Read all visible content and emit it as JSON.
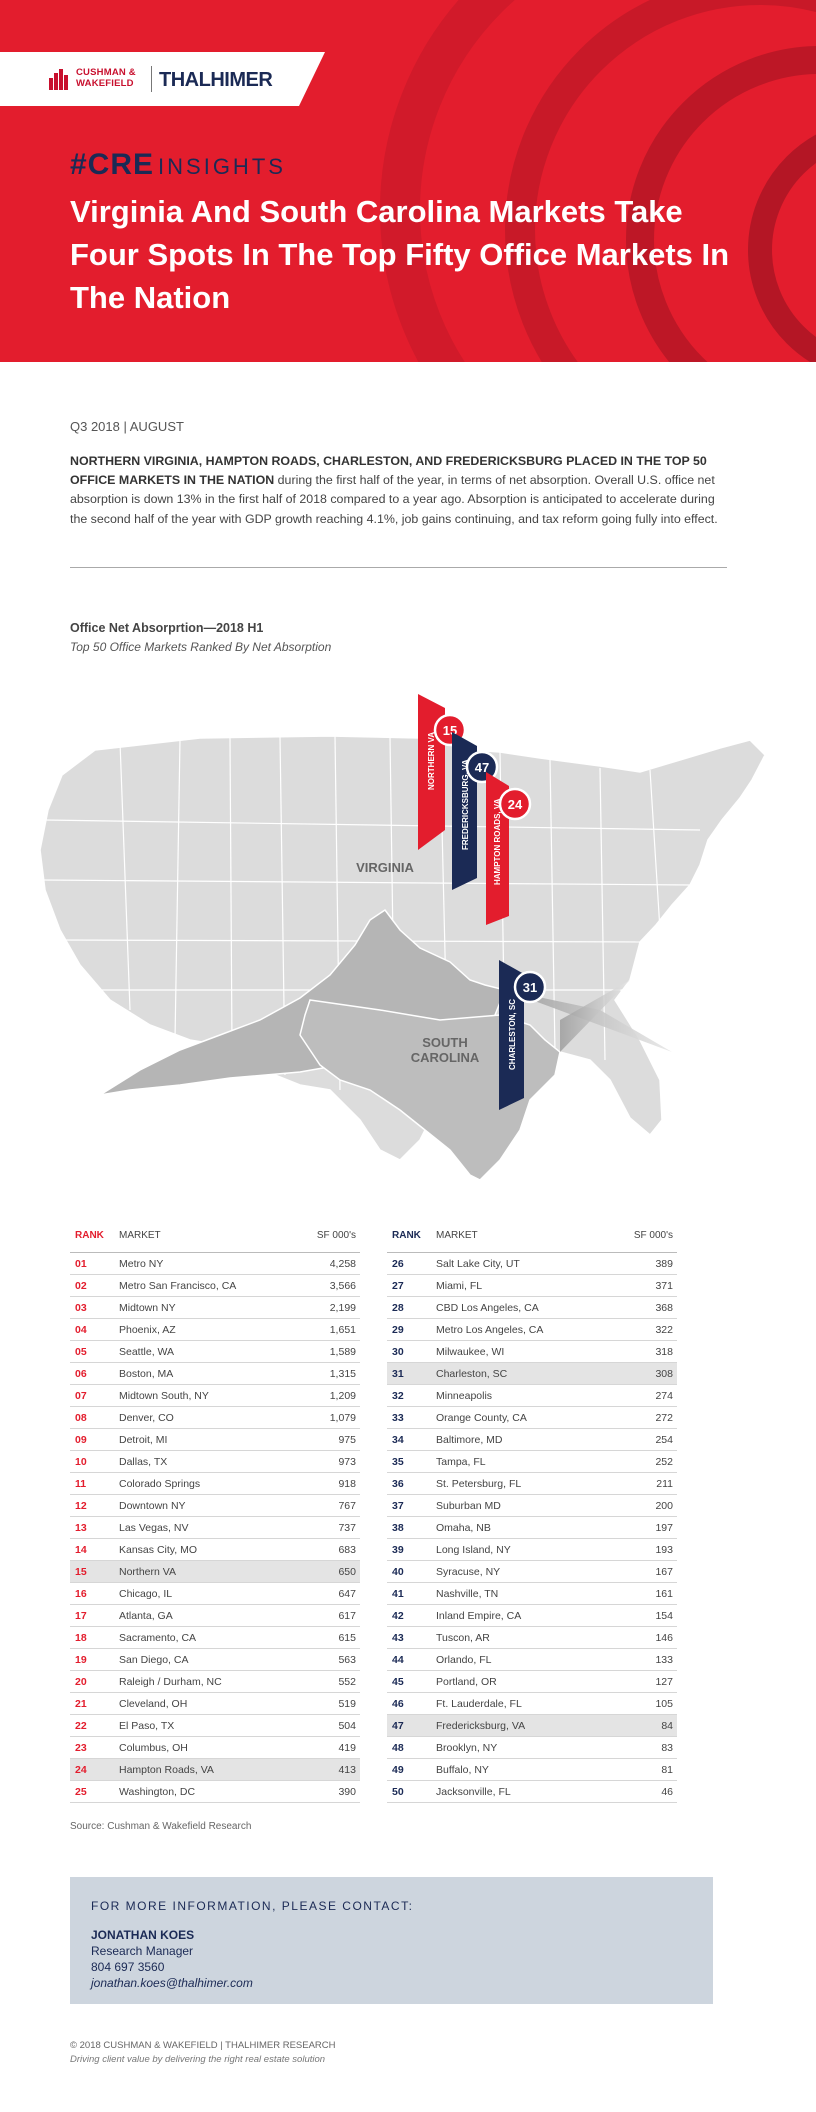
{
  "header": {
    "logo_left": [
      "CUSHMAN &",
      "WAKEFIELD"
    ],
    "logo_right": "THALHIMER",
    "cre_mark": "#CRE",
    "cre_insights": "INSIGHTS",
    "title": "Virginia And South Carolina Markets Take Four Spots In The Top Fifty Office Markets In The Nation",
    "colors": {
      "red": "#e31d2d",
      "navy": "#1b2a55"
    }
  },
  "intro": {
    "date": "Q3 2018 | AUGUST",
    "lead_bold": "NORTHERN VIRGINIA, HAMPTON ROADS, CHARLESTON, AND FREDERICKSBURG PLACED IN THE TOP 50 OFFICE MARKETS IN THE NATION",
    "body": " during the first half of the year, in terms of net absorption. Overall U.S. office net absorption is down 13% in the first half of 2018 compared to a year ago. Absorption is anticipated to accelerate during the second half of the year with GDP growth reaching 4.1%, job gains continuing, and tax reform going fully into effect."
  },
  "chart": {
    "title": "Office Net Absorprtion—2018 H1",
    "subtitle": "Top 50 Office Markets Ranked By Net Absorption"
  },
  "map": {
    "virginia_label": "VIRGINIA",
    "sc_label": [
      "SOUTH",
      "CAROLINA"
    ],
    "markers": [
      {
        "label": "NORTHERN VA",
        "rank": "15",
        "color": "#e31d2d"
      },
      {
        "label": "FREDERICKSBURG, VA",
        "rank": "47",
        "color": "#1b2a55"
      },
      {
        "label": "HAMPTON ROADS, VA",
        "rank": "24",
        "color": "#e31d2d"
      },
      {
        "label": "CHARLESTON, SC",
        "rank": "31",
        "color": "#1b2a55"
      }
    ]
  },
  "table": {
    "headers": {
      "rank": "RANK",
      "market": "MARKET",
      "sf": "SF 000's"
    },
    "left": [
      {
        "rank": "01",
        "market": "Metro NY",
        "sf": "4,258"
      },
      {
        "rank": "02",
        "market": "Metro San Francisco, CA",
        "sf": "3,566"
      },
      {
        "rank": "03",
        "market": "Midtown NY",
        "sf": "2,199"
      },
      {
        "rank": "04",
        "market": "Phoenix, AZ",
        "sf": "1,651"
      },
      {
        "rank": "05",
        "market": "Seattle, WA",
        "sf": "1,589"
      },
      {
        "rank": "06",
        "market": "Boston, MA",
        "sf": "1,315"
      },
      {
        "rank": "07",
        "market": "Midtown South, NY",
        "sf": "1,209"
      },
      {
        "rank": "08",
        "market": "Denver, CO",
        "sf": "1,079"
      },
      {
        "rank": "09",
        "market": "Detroit, MI",
        "sf": "975"
      },
      {
        "rank": "10",
        "market": "Dallas, TX",
        "sf": "973"
      },
      {
        "rank": "11",
        "market": "Colorado Springs",
        "sf": "918"
      },
      {
        "rank": "12",
        "market": "Downtown NY",
        "sf": "767"
      },
      {
        "rank": "13",
        "market": "Las Vegas, NV",
        "sf": "737"
      },
      {
        "rank": "14",
        "market": "Kansas City, MO",
        "sf": "683"
      },
      {
        "rank": "15",
        "market": "Northern VA",
        "sf": "650",
        "highlight": true
      },
      {
        "rank": "16",
        "market": "Chicago, IL",
        "sf": "647"
      },
      {
        "rank": "17",
        "market": "Atlanta, GA",
        "sf": "617"
      },
      {
        "rank": "18",
        "market": "Sacramento, CA",
        "sf": "615"
      },
      {
        "rank": "19",
        "market": "San Diego, CA",
        "sf": "563"
      },
      {
        "rank": "20",
        "market": "Raleigh / Durham, NC",
        "sf": "552"
      },
      {
        "rank": "21",
        "market": "Cleveland, OH",
        "sf": "519"
      },
      {
        "rank": "22",
        "market": "El Paso, TX",
        "sf": "504"
      },
      {
        "rank": "23",
        "market": "Columbus, OH",
        "sf": "419"
      },
      {
        "rank": "24",
        "market": "Hampton Roads, VA",
        "sf": "413",
        "highlight": true
      },
      {
        "rank": "25",
        "market": "Washington, DC",
        "sf": "390"
      }
    ],
    "right": [
      {
        "rank": "26",
        "market": "Salt Lake City, UT",
        "sf": "389"
      },
      {
        "rank": "27",
        "market": "Miami, FL",
        "sf": "371"
      },
      {
        "rank": "28",
        "market": "CBD Los Angeles, CA",
        "sf": "368"
      },
      {
        "rank": "29",
        "market": "Metro Los Angeles, CA",
        "sf": "322"
      },
      {
        "rank": "30",
        "market": "Milwaukee, WI",
        "sf": "318"
      },
      {
        "rank": "31",
        "market": "Charleston, SC",
        "sf": "308",
        "highlight": true
      },
      {
        "rank": "32",
        "market": "Minneapolis",
        "sf": "274"
      },
      {
        "rank": "33",
        "market": "Orange County, CA",
        "sf": "272"
      },
      {
        "rank": "34",
        "market": "Baltimore, MD",
        "sf": "254"
      },
      {
        "rank": "35",
        "market": "Tampa, FL",
        "sf": "252"
      },
      {
        "rank": "36",
        "market": "St. Petersburg, FL",
        "sf": "211"
      },
      {
        "rank": "37",
        "market": "Suburban MD",
        "sf": "200"
      },
      {
        "rank": "38",
        "market": "Omaha, NB",
        "sf": "197"
      },
      {
        "rank": "39",
        "market": "Long Island, NY",
        "sf": "193"
      },
      {
        "rank": "40",
        "market": "Syracuse, NY",
        "sf": "167"
      },
      {
        "rank": "41",
        "market": "Nashville, TN",
        "sf": "161"
      },
      {
        "rank": "42",
        "market": "Inland Empire, CA",
        "sf": "154"
      },
      {
        "rank": "43",
        "market": "Tuscon, AR",
        "sf": "146"
      },
      {
        "rank": "44",
        "market": "Orlando, FL",
        "sf": "133"
      },
      {
        "rank": "45",
        "market": "Portland, OR",
        "sf": "127"
      },
      {
        "rank": "46",
        "market": "Ft. Lauderdale, FL",
        "sf": "105"
      },
      {
        "rank": "47",
        "market": "Fredericksburg, VA",
        "sf": "84",
        "highlight": true
      },
      {
        "rank": "48",
        "market": "Brooklyn, NY",
        "sf": "83"
      },
      {
        "rank": "49",
        "market": "Buffalo, NY",
        "sf": "81"
      },
      {
        "rank": "50",
        "market": "Jacksonville, FL",
        "sf": "46"
      }
    ]
  },
  "source": "Source: Cushman & Wakefield Research",
  "contact": {
    "heading": "FOR MORE INFORMATION, PLEASE CONTACT:",
    "name": "JONATHAN KOES",
    "role": "Research Manager",
    "phone": "804 697 3560",
    "email": "jonathan.koes@thalhimer.com"
  },
  "footer": {
    "line1": "© 2018 CUSHMAN & WAKEFIELD | THALHIMER RESEARCH",
    "line2": "Driving client value by delivering the right real estate solution"
  }
}
